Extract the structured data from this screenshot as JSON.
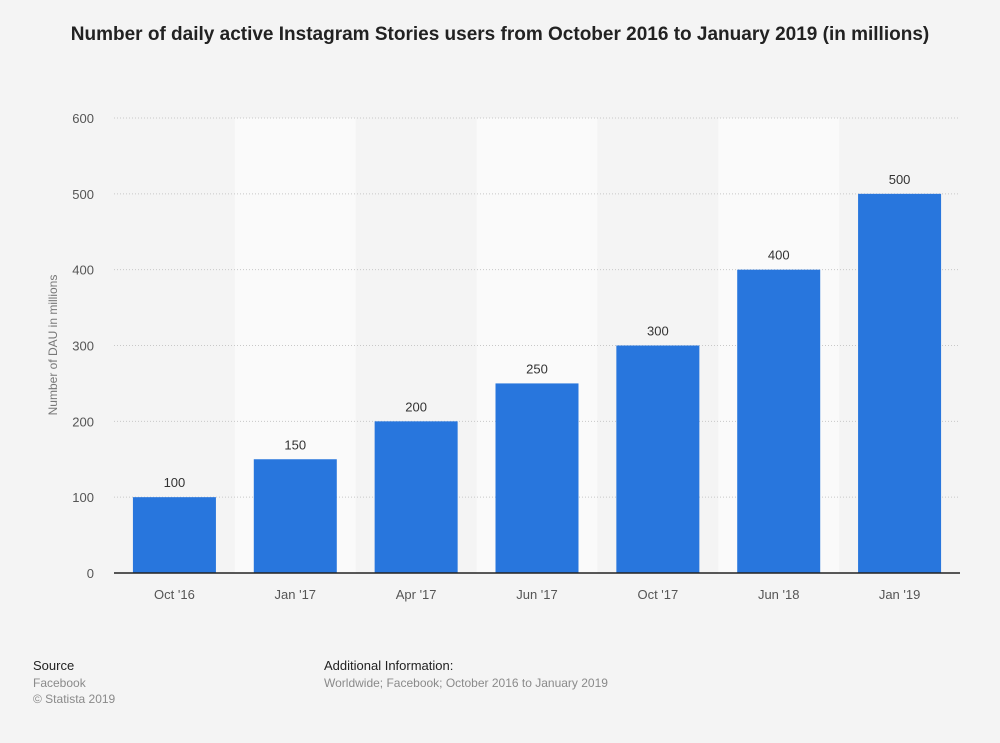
{
  "chart_data": {
    "type": "bar",
    "title": "Number of daily active Instagram Stories users from October 2016 to January 2019 (in millions)",
    "xlabel": "",
    "ylabel": "Number of DAU in millions",
    "categories": [
      "Oct '16",
      "Jan '17",
      "Apr '17",
      "Jun '17",
      "Oct '17",
      "Jun '18",
      "Jan '19"
    ],
    "values": [
      100,
      150,
      200,
      250,
      300,
      400,
      500
    ],
    "ylim": [
      0,
      600
    ],
    "yticks": [
      0,
      100,
      200,
      300,
      400,
      500,
      600
    ],
    "grid": true,
    "data_labels": true,
    "colors": {
      "bar": "#2876dd",
      "background": "#f4f4f4",
      "band": "#fafafa"
    }
  },
  "footer": {
    "source_heading": "Source",
    "source": "Facebook",
    "copyright": "© Statista 2019",
    "info_heading": "Additional Information:",
    "info": "Worldwide; Facebook; October 2016 to January 2019"
  }
}
